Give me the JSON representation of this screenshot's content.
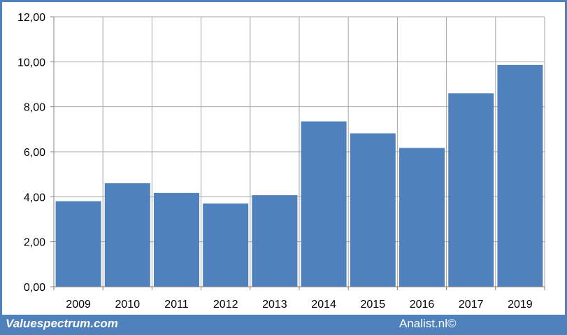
{
  "colors": {
    "bar": "#4f81bd",
    "grid": "#a6a6a6",
    "frame": "#4f81bd",
    "footer_text": "#ffffff"
  },
  "footer": {
    "left_text": "Valuespectrum.com",
    "right_text": "Analist.nl©"
  },
  "chart_data": {
    "type": "bar",
    "categories": [
      "2009",
      "2010",
      "2011",
      "2012",
      "2013",
      "2014",
      "2015",
      "2016",
      "2017",
      "2019"
    ],
    "values": [
      3.8,
      4.6,
      4.17,
      3.7,
      4.07,
      7.35,
      6.82,
      6.17,
      8.6,
      9.86
    ],
    "title": "",
    "xlabel": "",
    "ylabel": "",
    "ylim": [
      0,
      12
    ],
    "yticks": [
      "0,00",
      "2,00",
      "4,00",
      "6,00",
      "8,00",
      "10,00",
      "12,00"
    ],
    "grid": true,
    "legend": "none"
  }
}
